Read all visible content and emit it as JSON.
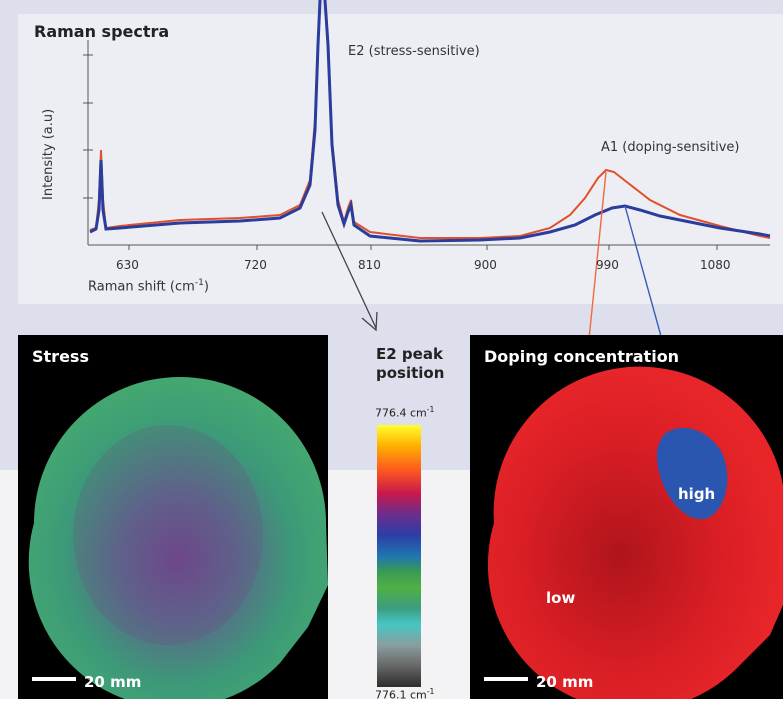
{
  "spectrum": {
    "title": "Raman spectra",
    "ylabel": "Intensity (a.u)",
    "xlabel_main": "Raman shift (cm",
    "xlabel_sup": "-1",
    "xlabel_end": ")",
    "ticks": [
      "630",
      "720",
      "810",
      "900",
      "990",
      "1080"
    ],
    "e2_label": "E2 (stress-sensitive)",
    "a1_label": "A1 (doping-sensitive)",
    "series_colors": {
      "red": "#e0502a",
      "blue": "#2a3c9c"
    }
  },
  "stress_map": {
    "title": "Stress",
    "scale": "20 mm",
    "color": "#3a9a70"
  },
  "colorbar": {
    "title_line1": "E2 peak",
    "title_line2": "position",
    "top_value": "776.4 cm",
    "top_sup": "-1",
    "bottom_value": "776.1 cm",
    "bottom_sup": "-1"
  },
  "doping_map": {
    "title": "Doping concentration",
    "label_high": "high",
    "label_low": "low",
    "scale": "20 mm",
    "color_low": "#e21f26",
    "color_high": "#2a56b0"
  }
}
